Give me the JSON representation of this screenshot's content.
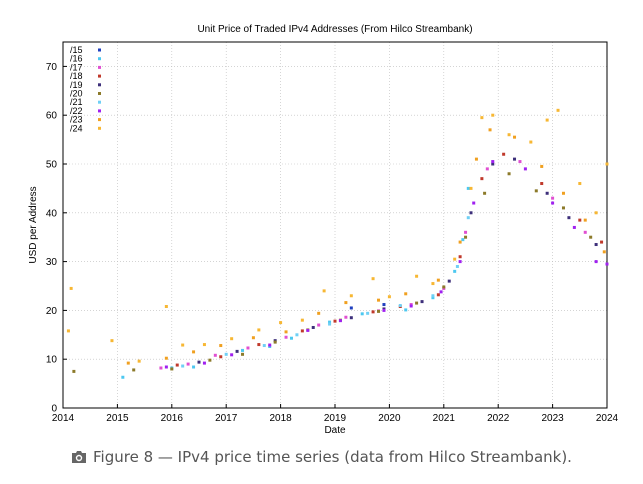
{
  "chart_data": {
    "type": "scatter",
    "title": "Unit Price of Traded IPv4 Addresses (From Hilco Streambank)",
    "xlabel": "Date",
    "ylabel": "USD per Address",
    "xlim": [
      2014,
      2024
    ],
    "ylim": [
      0,
      75
    ],
    "x_ticks": [
      "2014",
      "2015",
      "2016",
      "2017",
      "2018",
      "2019",
      "2020",
      "2021",
      "2022",
      "2023",
      "2024"
    ],
    "y_ticks": [
      "0",
      "10",
      "20",
      "30",
      "40",
      "50",
      "60",
      "70"
    ],
    "grid": true,
    "legend_position": "top-left",
    "series": [
      {
        "name": "/15",
        "color": "#1f3fbf",
        "points": [
          [
            2019.3,
            20.5
          ],
          [
            2019.9,
            21.2
          ]
        ]
      },
      {
        "name": "/16",
        "color": "#4dc8f0",
        "points": [
          [
            2015.1,
            6.3
          ],
          [
            2016.0,
            8.2
          ],
          [
            2016.4,
            8.4
          ],
          [
            2017.3,
            11.8
          ],
          [
            2017.8,
            12.6
          ],
          [
            2018.2,
            14.3
          ],
          [
            2018.9,
            17.6
          ],
          [
            2019.5,
            19.3
          ],
          [
            2020.3,
            20.1
          ],
          [
            2020.8,
            22.6
          ],
          [
            2021.2,
            28.0
          ],
          [
            2021.35,
            34.5
          ],
          [
            2021.45,
            45.0
          ]
        ]
      },
      {
        "name": "/17",
        "color": "#e04fd2",
        "points": [
          [
            2015.8,
            8.2
          ],
          [
            2016.3,
            9.0
          ],
          [
            2016.8,
            10.8
          ],
          [
            2017.4,
            12.3
          ],
          [
            2018.1,
            14.5
          ],
          [
            2018.7,
            17.0
          ],
          [
            2019.2,
            18.6
          ],
          [
            2019.8,
            19.9
          ],
          [
            2020.4,
            21.2
          ],
          [
            2021.0,
            24.5
          ],
          [
            2021.4,
            36.0
          ],
          [
            2021.8,
            49.0
          ],
          [
            2022.4,
            50.5
          ],
          [
            2023.0,
            43.0
          ],
          [
            2023.6,
            36.0
          ]
        ]
      },
      {
        "name": "/18",
        "color": "#c0392b",
        "points": [
          [
            2016.1,
            8.8
          ],
          [
            2016.9,
            10.5
          ],
          [
            2017.6,
            13.0
          ],
          [
            2018.4,
            15.8
          ],
          [
            2019.0,
            17.8
          ],
          [
            2019.7,
            19.7
          ],
          [
            2020.2,
            20.8
          ],
          [
            2020.9,
            23.2
          ],
          [
            2021.3,
            31.0
          ],
          [
            2021.7,
            47.0
          ],
          [
            2022.1,
            52.0
          ],
          [
            2022.8,
            46.0
          ],
          [
            2023.5,
            38.5
          ],
          [
            2023.9,
            34.0
          ]
        ]
      },
      {
        "name": "/19",
        "color": "#3d2f7a",
        "points": [
          [
            2016.5,
            9.4
          ],
          [
            2017.2,
            11.6
          ],
          [
            2017.9,
            13.8
          ],
          [
            2018.6,
            16.5
          ],
          [
            2019.3,
            18.5
          ],
          [
            2019.9,
            20.3
          ],
          [
            2020.6,
            21.8
          ],
          [
            2021.1,
            26.0
          ],
          [
            2021.5,
            40.0
          ],
          [
            2021.9,
            50.0
          ],
          [
            2022.3,
            51.0
          ],
          [
            2022.9,
            44.0
          ],
          [
            2023.3,
            39.0
          ],
          [
            2023.8,
            33.5
          ]
        ]
      },
      {
        "name": "/20",
        "color": "#8c7a2a",
        "points": [
          [
            2014.2,
            7.5
          ],
          [
            2015.3,
            7.8
          ],
          [
            2016.0,
            8.0
          ],
          [
            2016.7,
            9.8
          ],
          [
            2017.3,
            11.0
          ],
          [
            2017.9,
            13.5
          ],
          [
            2018.5,
            16.0
          ],
          [
            2019.1,
            18.0
          ],
          [
            2019.8,
            19.8
          ],
          [
            2020.5,
            21.5
          ],
          [
            2021.0,
            24.8
          ],
          [
            2021.4,
            35.0
          ],
          [
            2021.75,
            44.0
          ],
          [
            2022.2,
            48.0
          ],
          [
            2022.7,
            44.5
          ],
          [
            2023.2,
            41.0
          ],
          [
            2023.7,
            35.0
          ]
        ]
      },
      {
        "name": "/21",
        "color": "#6fd0f5",
        "points": [
          [
            2016.2,
            8.6
          ],
          [
            2017.0,
            11.0
          ],
          [
            2017.7,
            12.8
          ],
          [
            2018.3,
            15.0
          ],
          [
            2018.9,
            17.2
          ],
          [
            2019.6,
            19.4
          ],
          [
            2020.2,
            21.0
          ],
          [
            2020.8,
            23.0
          ],
          [
            2021.25,
            29.0
          ],
          [
            2021.45,
            39.0
          ]
        ]
      },
      {
        "name": "/22",
        "color": "#a020f0",
        "points": [
          [
            2015.9,
            8.4
          ],
          [
            2016.6,
            9.2
          ],
          [
            2017.1,
            10.9
          ],
          [
            2017.8,
            12.9
          ],
          [
            2018.5,
            15.9
          ],
          [
            2019.1,
            17.9
          ],
          [
            2019.9,
            20.0
          ],
          [
            2020.4,
            20.9
          ],
          [
            2020.95,
            23.8
          ],
          [
            2021.3,
            30.0
          ],
          [
            2021.55,
            42.0
          ],
          [
            2021.9,
            50.5
          ],
          [
            2022.5,
            49.0
          ],
          [
            2023.0,
            42.0
          ],
          [
            2023.4,
            37.0
          ],
          [
            2023.8,
            30.0
          ],
          [
            2024.0,
            29.5
          ]
        ]
      },
      {
        "name": "/23",
        "color": "#f0a020",
        "points": [
          [
            2015.2,
            9.2
          ],
          [
            2015.9,
            10.2
          ],
          [
            2016.4,
            11.5
          ],
          [
            2016.9,
            12.8
          ],
          [
            2017.5,
            14.4
          ],
          [
            2018.1,
            15.6
          ],
          [
            2018.7,
            19.4
          ],
          [
            2019.2,
            21.6
          ],
          [
            2019.8,
            22.1
          ],
          [
            2020.3,
            23.4
          ],
          [
            2020.9,
            26.2
          ],
          [
            2021.3,
            34.0
          ],
          [
            2021.6,
            51.0
          ],
          [
            2021.85,
            57.0
          ],
          [
            2022.3,
            55.5
          ],
          [
            2022.8,
            49.5
          ],
          [
            2023.2,
            44.0
          ],
          [
            2023.6,
            38.5
          ],
          [
            2023.95,
            32.0
          ]
        ]
      },
      {
        "name": "/24",
        "color": "#f7b733",
        "points": [
          [
            2014.1,
            15.8
          ],
          [
            2014.15,
            24.5
          ],
          [
            2014.9,
            13.8
          ],
          [
            2015.4,
            9.6
          ],
          [
            2015.9,
            20.8
          ],
          [
            2016.2,
            12.9
          ],
          [
            2016.6,
            13.0
          ],
          [
            2017.1,
            14.2
          ],
          [
            2017.6,
            16.0
          ],
          [
            2018.0,
            17.5
          ],
          [
            2018.4,
            18.0
          ],
          [
            2018.8,
            24.0
          ],
          [
            2019.3,
            23.0
          ],
          [
            2019.7,
            26.5
          ],
          [
            2020.0,
            22.8
          ],
          [
            2020.5,
            27.0
          ],
          [
            2020.8,
            25.5
          ],
          [
            2021.2,
            30.5
          ],
          [
            2021.5,
            45.0
          ],
          [
            2021.7,
            59.5
          ],
          [
            2021.9,
            60.0
          ],
          [
            2022.2,
            56.0
          ],
          [
            2022.6,
            54.5
          ],
          [
            2022.9,
            59.0
          ],
          [
            2023.1,
            61.0
          ],
          [
            2023.5,
            46.0
          ],
          [
            2023.8,
            40.0
          ],
          [
            2024.0,
            50.0
          ]
        ]
      }
    ]
  },
  "caption": {
    "icon": "camera-icon",
    "text": "Figure 8 — IPv4 price time series (data from Hilco Streambank)."
  }
}
